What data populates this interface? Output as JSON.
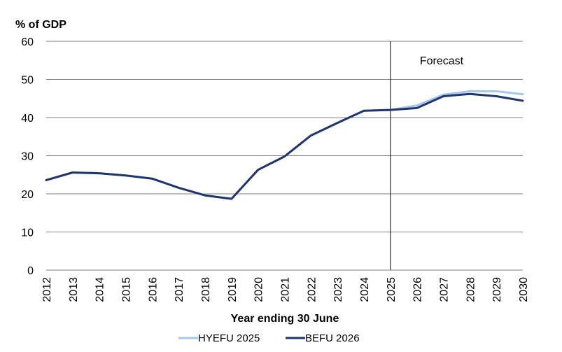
{
  "chart_data": {
    "type": "line",
    "unit_label": "% of GDP",
    "xlabel": "Year ending 30 June",
    "ylabel": "",
    "ylim": [
      0,
      60
    ],
    "yticks": [
      0,
      10,
      20,
      30,
      40,
      50,
      60
    ],
    "grid": true,
    "x": [
      "2012",
      "2013",
      "2014",
      "2015",
      "2016",
      "2017",
      "2018",
      "2019",
      "2020",
      "2021",
      "2022",
      "2023",
      "2024",
      "2025",
      "2026",
      "2027",
      "2028",
      "2029",
      "2030"
    ],
    "forecast_marker": {
      "at": "2025",
      "label": "Forecast"
    },
    "legend_position": "bottom",
    "series": [
      {
        "name": "HYEFU 2025",
        "color": "#a6c8e8",
        "values": [
          23.6,
          25.6,
          25.4,
          24.8,
          24.0,
          21.6,
          19.6,
          18.7,
          26.3,
          29.8,
          35.3,
          38.6,
          41.8,
          42.0,
          43.2,
          46.0,
          46.9,
          46.9,
          46.1
        ]
      },
      {
        "name": "BEFU 2026",
        "color": "#1f3570",
        "values": [
          23.6,
          25.6,
          25.4,
          24.8,
          24.0,
          21.6,
          19.6,
          18.7,
          26.3,
          29.8,
          35.3,
          38.6,
          41.8,
          42.0,
          42.5,
          45.6,
          46.2,
          45.6,
          44.4
        ]
      }
    ]
  }
}
